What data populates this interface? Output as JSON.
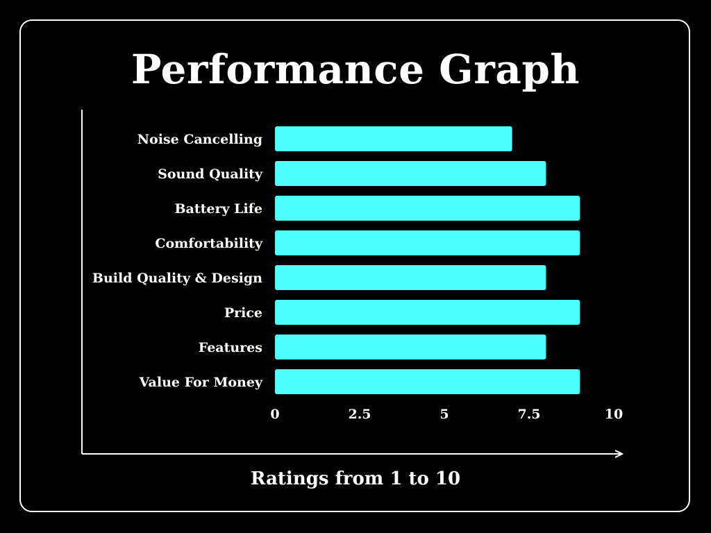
{
  "chart_data": {
    "type": "bar",
    "orientation": "horizontal",
    "title": "Performance Graph",
    "xlabel": "Ratings from 1 to 10",
    "ylabel": "",
    "categories": [
      "Noise Cancelling",
      "Sound Quality",
      "Battery Life",
      "Comfortability",
      "Build Quality & Design",
      "Price",
      "Features",
      "Value For Money"
    ],
    "values": [
      7,
      8,
      9,
      9,
      8,
      9,
      8,
      9
    ],
    "xlim": [
      0,
      10
    ],
    "xticks": [
      0,
      2.5,
      5,
      7.5,
      10
    ],
    "xtick_labels": [
      "0",
      "2.5",
      "5",
      "7.5",
      "10"
    ],
    "grid": false,
    "legend": "none",
    "colors": {
      "bar": "#4dffff",
      "background": "#000000",
      "text": "#ffffff",
      "axis": "#ffffff"
    }
  }
}
